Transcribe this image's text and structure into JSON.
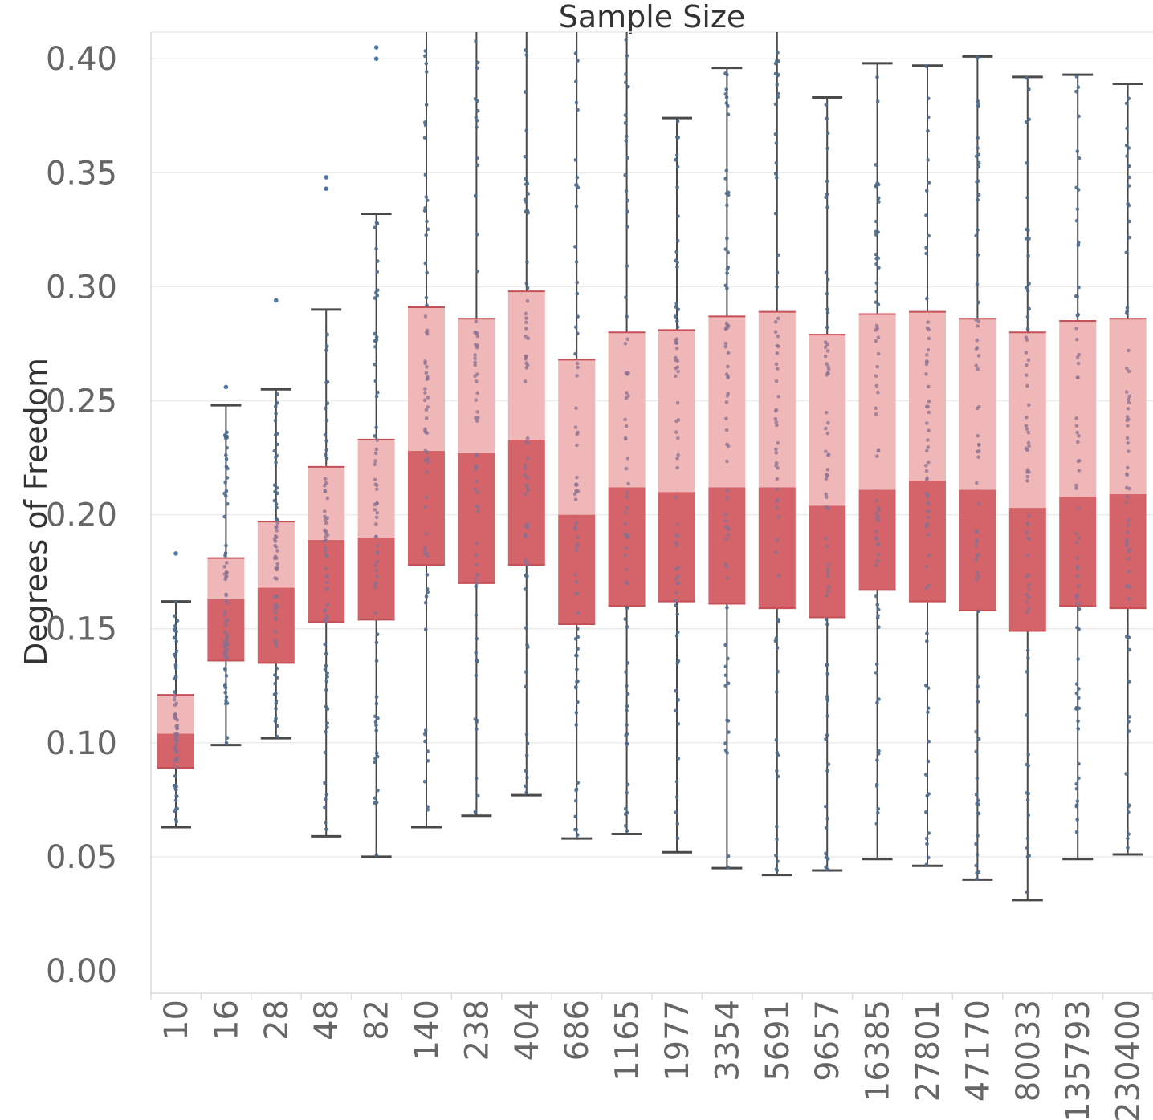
{
  "chart_data": {
    "type": "box",
    "title": "Sample Size",
    "xlabel": "",
    "ylabel": "Degrees of Freedom",
    "ylim": [
      0.0,
      0.41
    ],
    "yticks": [
      0.0,
      0.05,
      0.1,
      0.15,
      0.2,
      0.25,
      0.3,
      0.35,
      0.4
    ],
    "ytick_labels": [
      "0.00",
      "0.05",
      "0.10",
      "0.15",
      "0.20",
      "0.25",
      "0.30",
      "0.35",
      "0.40"
    ],
    "categories": [
      "10",
      "16",
      "28",
      "48",
      "82",
      "140",
      "238",
      "404",
      "686",
      "1165",
      "1977",
      "3354",
      "5691",
      "9657",
      "16385",
      "27801",
      "47170",
      "80033",
      "135793",
      "230400"
    ],
    "boxes": [
      {
        "whisker_low": 0.063,
        "q1": 0.089,
        "median": 0.104,
        "q3": 0.121,
        "whisker_high": 0.162,
        "outliers": [
          0.183
        ]
      },
      {
        "whisker_low": 0.099,
        "q1": 0.136,
        "median": 0.163,
        "q3": 0.181,
        "whisker_high": 0.248,
        "outliers": [
          0.256
        ]
      },
      {
        "whisker_low": 0.102,
        "q1": 0.135,
        "median": 0.168,
        "q3": 0.197,
        "whisker_high": 0.255,
        "outliers": [
          0.294
        ]
      },
      {
        "whisker_low": 0.059,
        "q1": 0.153,
        "median": 0.189,
        "q3": 0.221,
        "whisker_high": 0.29,
        "outliers": [
          0.343,
          0.348
        ]
      },
      {
        "whisker_low": 0.05,
        "q1": 0.154,
        "median": 0.19,
        "q3": 0.233,
        "whisker_high": 0.332,
        "outliers": [
          0.4,
          0.405
        ]
      },
      {
        "whisker_low": 0.063,
        "q1": 0.178,
        "median": 0.228,
        "q3": 0.291,
        "whisker_high": 0.43,
        "outliers": []
      },
      {
        "whisker_low": 0.068,
        "q1": 0.17,
        "median": 0.227,
        "q3": 0.286,
        "whisker_high": 0.43,
        "outliers": []
      },
      {
        "whisker_low": 0.077,
        "q1": 0.178,
        "median": 0.233,
        "q3": 0.298,
        "whisker_high": 0.43,
        "outliers": []
      },
      {
        "whisker_low": 0.058,
        "q1": 0.152,
        "median": 0.2,
        "q3": 0.268,
        "whisker_high": 0.43,
        "outliers": []
      },
      {
        "whisker_low": 0.06,
        "q1": 0.16,
        "median": 0.212,
        "q3": 0.28,
        "whisker_high": 0.43,
        "outliers": []
      },
      {
        "whisker_low": 0.052,
        "q1": 0.162,
        "median": 0.21,
        "q3": 0.281,
        "whisker_high": 0.374,
        "outliers": []
      },
      {
        "whisker_low": 0.045,
        "q1": 0.161,
        "median": 0.212,
        "q3": 0.287,
        "whisker_high": 0.396,
        "outliers": []
      },
      {
        "whisker_low": 0.042,
        "q1": 0.159,
        "median": 0.212,
        "q3": 0.289,
        "whisker_high": 0.43,
        "outliers": []
      },
      {
        "whisker_low": 0.044,
        "q1": 0.155,
        "median": 0.204,
        "q3": 0.279,
        "whisker_high": 0.383,
        "outliers": []
      },
      {
        "whisker_low": 0.049,
        "q1": 0.167,
        "median": 0.211,
        "q3": 0.288,
        "whisker_high": 0.398,
        "outliers": []
      },
      {
        "whisker_low": 0.046,
        "q1": 0.162,
        "median": 0.215,
        "q3": 0.289,
        "whisker_high": 0.397,
        "outliers": []
      },
      {
        "whisker_low": 0.04,
        "q1": 0.158,
        "median": 0.211,
        "q3": 0.286,
        "whisker_high": 0.401,
        "outliers": []
      },
      {
        "whisker_low": 0.031,
        "q1": 0.149,
        "median": 0.203,
        "q3": 0.28,
        "whisker_high": 0.392,
        "outliers": []
      },
      {
        "whisker_low": 0.049,
        "q1": 0.16,
        "median": 0.208,
        "q3": 0.285,
        "whisker_high": 0.393,
        "outliers": []
      },
      {
        "whisker_low": 0.051,
        "q1": 0.159,
        "median": 0.209,
        "q3": 0.286,
        "whisker_high": 0.389,
        "outliers": []
      }
    ],
    "colors": {
      "upper_box": "#f0b7b8",
      "lower_box": "#d4646a",
      "whisker": "#4a4a4a",
      "points": "#4e6a8a",
      "outlier": "#4e79a7",
      "grid": "#ebebeb",
      "tick_text": "#666666",
      "title_text": "#333333"
    },
    "grid": true
  }
}
